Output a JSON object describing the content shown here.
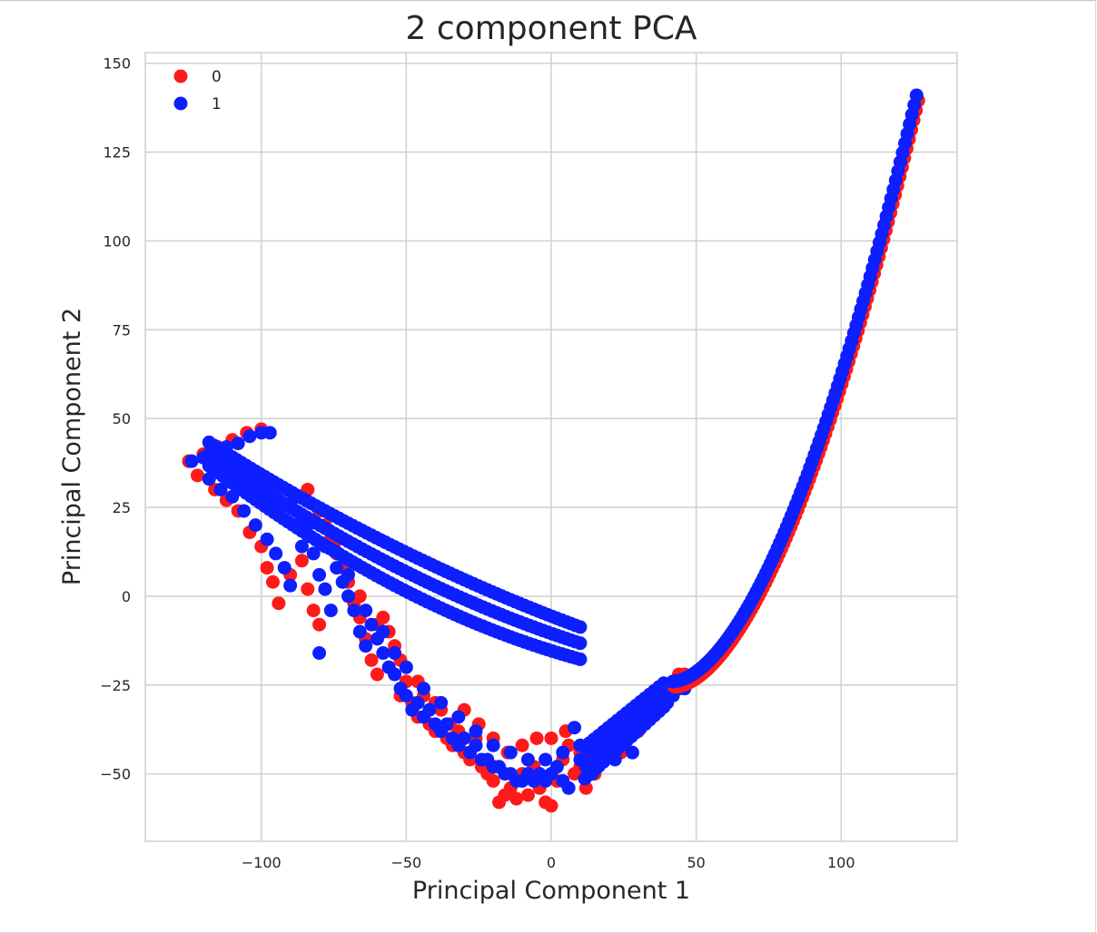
{
  "chart_data": {
    "type": "scatter",
    "title": "2 component PCA",
    "xlabel": "Principal Component 1",
    "ylabel": "Principal Component 2",
    "xlim": [
      -140,
      140
    ],
    "ylim": [
      -69,
      153
    ],
    "xticks": [
      -100,
      -50,
      0,
      50,
      100
    ],
    "yticks": [
      -50,
      -25,
      0,
      25,
      50,
      75,
      100,
      125,
      150
    ],
    "xtick_labels": [
      "−100",
      "−50",
      "0",
      "50",
      "100"
    ],
    "ytick_labels": [
      "−50",
      "−25",
      "0",
      "25",
      "50",
      "75",
      "100",
      "125",
      "150"
    ],
    "grid": true,
    "legend_position": "top-left",
    "series": [
      {
        "name": "0",
        "color": "#ff1a1a",
        "points": [
          [
            -125,
            38
          ],
          [
            -120,
            40
          ],
          [
            -115,
            42
          ],
          [
            -110,
            44
          ],
          [
            -105,
            46
          ],
          [
            -100,
            47
          ],
          [
            -122,
            34
          ],
          [
            -116,
            30
          ],
          [
            -112,
            27
          ],
          [
            -108,
            24
          ],
          [
            -104,
            18
          ],
          [
            -100,
            14
          ],
          [
            -98,
            8
          ],
          [
            -96,
            4
          ],
          [
            -94,
            -2
          ],
          [
            -90,
            6
          ],
          [
            -86,
            10
          ],
          [
            -84,
            2
          ],
          [
            -82,
            -4
          ],
          [
            -80,
            -8
          ],
          [
            -78,
            20
          ],
          [
            -76,
            16
          ],
          [
            -74,
            12
          ],
          [
            -72,
            8
          ],
          [
            -70,
            4
          ],
          [
            -68,
            -2
          ],
          [
            -66,
            -6
          ],
          [
            -64,
            -12
          ],
          [
            -62,
            -18
          ],
          [
            -60,
            -22
          ],
          [
            -58,
            -6
          ],
          [
            -56,
            -10
          ],
          [
            -54,
            -14
          ],
          [
            -52,
            -18
          ],
          [
            -50,
            -24
          ],
          [
            -48,
            -30
          ],
          [
            -46,
            -34
          ],
          [
            -44,
            -28
          ],
          [
            -42,
            -36
          ],
          [
            -40,
            -38
          ],
          [
            -38,
            -32
          ],
          [
            -36,
            -40
          ],
          [
            -34,
            -42
          ],
          [
            -32,
            -38
          ],
          [
            -30,
            -44
          ],
          [
            -28,
            -46
          ],
          [
            -26,
            -40
          ],
          [
            -24,
            -48
          ],
          [
            -22,
            -50
          ],
          [
            -20,
            -52
          ],
          [
            -18,
            -58
          ],
          [
            -16,
            -56
          ],
          [
            -14,
            -54
          ],
          [
            -12,
            -57
          ],
          [
            -10,
            -50
          ],
          [
            -8,
            -56
          ],
          [
            -6,
            -48
          ],
          [
            -4,
            -54
          ],
          [
            -2,
            -58
          ],
          [
            0,
            -59
          ],
          [
            2,
            -52
          ],
          [
            4,
            -46
          ],
          [
            6,
            -42
          ],
          [
            8,
            -50
          ],
          [
            10,
            -48
          ],
          [
            12,
            -54
          ],
          [
            14,
            -44
          ],
          [
            16,
            -40
          ],
          [
            18,
            -46
          ],
          [
            20,
            -42
          ],
          [
            22,
            -38
          ],
          [
            24,
            -44
          ],
          [
            26,
            -40
          ],
          [
            28,
            -36
          ],
          [
            30,
            -38
          ],
          [
            32,
            -34
          ],
          [
            34,
            -32
          ],
          [
            36,
            -30
          ],
          [
            38,
            -28
          ],
          [
            40,
            -26
          ],
          [
            42,
            -24
          ],
          [
            44,
            -22
          ],
          [
            46,
            -22
          ],
          [
            -88,
            28
          ],
          [
            -84,
            30
          ],
          [
            -80,
            24
          ],
          [
            -75,
            14
          ],
          [
            -70,
            10
          ],
          [
            -66,
            0
          ],
          [
            -60,
            -8
          ],
          [
            -56,
            -20
          ],
          [
            -52,
            -28
          ],
          [
            -46,
            -24
          ],
          [
            -40,
            -30
          ],
          [
            -35,
            -36
          ],
          [
            -30,
            -32
          ],
          [
            -25,
            -36
          ],
          [
            -20,
            -40
          ],
          [
            -15,
            -44
          ],
          [
            -10,
            -42
          ],
          [
            -5,
            -40
          ],
          [
            0,
            -40
          ],
          [
            5,
            -38
          ],
          [
            10,
            -44
          ],
          [
            15,
            -50
          ]
        ]
      },
      {
        "name": "1",
        "color": "#0d1fff",
        "points": [
          [
            -124,
            38
          ],
          [
            -120,
            39
          ],
          [
            -116,
            40
          ],
          [
            -112,
            42
          ],
          [
            -108,
            43
          ],
          [
            -104,
            45
          ],
          [
            -100,
            46
          ],
          [
            -97,
            46
          ],
          [
            -118,
            33
          ],
          [
            -114,
            30
          ],
          [
            -110,
            28
          ],
          [
            -106,
            24
          ],
          [
            -102,
            20
          ],
          [
            -98,
            16
          ],
          [
            -95,
            12
          ],
          [
            -92,
            8
          ],
          [
            -90,
            3
          ],
          [
            -86,
            14
          ],
          [
            -82,
            12
          ],
          [
            -80,
            6
          ],
          [
            -78,
            2
          ],
          [
            -76,
            -4
          ],
          [
            -74,
            8
          ],
          [
            -72,
            4
          ],
          [
            -70,
            0
          ],
          [
            -68,
            -4
          ],
          [
            -66,
            -10
          ],
          [
            -64,
            -14
          ],
          [
            -80,
            -16
          ],
          [
            -62,
            -8
          ],
          [
            -60,
            -12
          ],
          [
            -58,
            -16
          ],
          [
            -56,
            -20
          ],
          [
            -54,
            -22
          ],
          [
            -52,
            -26
          ],
          [
            -50,
            -28
          ],
          [
            -48,
            -32
          ],
          [
            -46,
            -30
          ],
          [
            -44,
            -34
          ],
          [
            -42,
            -32
          ],
          [
            -40,
            -36
          ],
          [
            -38,
            -38
          ],
          [
            -36,
            -36
          ],
          [
            -34,
            -40
          ],
          [
            -32,
            -42
          ],
          [
            -30,
            -40
          ],
          [
            -28,
            -44
          ],
          [
            -26,
            -42
          ],
          [
            -24,
            -46
          ],
          [
            -22,
            -46
          ],
          [
            -20,
            -48
          ],
          [
            -18,
            -48
          ],
          [
            -16,
            -50
          ],
          [
            -14,
            -50
          ],
          [
            -12,
            -52
          ],
          [
            -10,
            -52
          ],
          [
            -8,
            -50
          ],
          [
            -6,
            -52
          ],
          [
            -4,
            -50
          ],
          [
            -2,
            -52
          ],
          [
            0,
            -50
          ],
          [
            2,
            -48
          ],
          [
            4,
            -52
          ],
          [
            6,
            -54
          ],
          [
            8,
            -37
          ],
          [
            10,
            -46
          ],
          [
            12,
            -48
          ],
          [
            14,
            -50
          ],
          [
            16,
            -48
          ],
          [
            18,
            -44
          ],
          [
            20,
            -42
          ],
          [
            22,
            -42
          ],
          [
            24,
            -40
          ],
          [
            26,
            -40
          ],
          [
            28,
            -38
          ],
          [
            30,
            -36
          ],
          [
            32,
            -35
          ],
          [
            34,
            -34
          ],
          [
            36,
            -32
          ],
          [
            38,
            -30
          ],
          [
            40,
            -30
          ],
          [
            42,
            -28
          ],
          [
            44,
            -26
          ],
          [
            46,
            -26
          ],
          [
            48,
            -24
          ],
          [
            -90,
            26
          ],
          [
            -86,
            22
          ],
          [
            -84,
            20
          ],
          [
            -78,
            14
          ],
          [
            -70,
            6
          ],
          [
            -64,
            -4
          ],
          [
            -58,
            -10
          ],
          [
            -54,
            -16
          ],
          [
            -50,
            -20
          ],
          [
            -44,
            -26
          ],
          [
            -38,
            -30
          ],
          [
            -32,
            -34
          ],
          [
            -26,
            -38
          ],
          [
            -20,
            -42
          ],
          [
            -14,
            -44
          ],
          [
            -8,
            -46
          ],
          [
            -2,
            -46
          ],
          [
            4,
            -44
          ],
          [
            10,
            -42
          ],
          [
            16,
            -44
          ],
          [
            22,
            -46
          ],
          [
            28,
            -44
          ]
        ]
      }
    ]
  }
}
